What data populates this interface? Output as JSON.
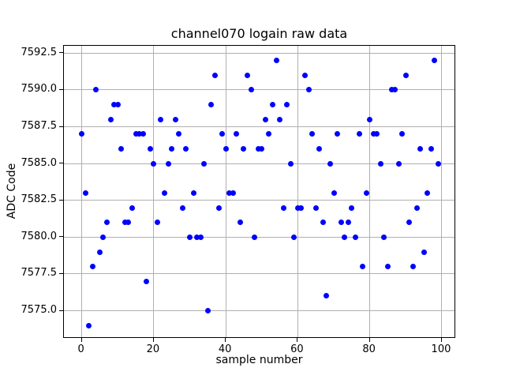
{
  "chart_data": {
    "type": "scatter",
    "title": "channel070 logain raw data",
    "xlabel": "sample number",
    "ylabel": "ADC Code",
    "marker_color": "#0000ff",
    "grid": true,
    "grid_color": "#b0b0b0",
    "legend": "none",
    "xlim": [
      -4.95,
      103.95
    ],
    "ylim": [
      7573.1,
      7593.0
    ],
    "xticks": [
      0,
      20,
      40,
      60,
      80,
      100
    ],
    "xtick_labels": [
      "0",
      "20",
      "40",
      "60",
      "80",
      "100"
    ],
    "yticks": [
      7575.0,
      7577.5,
      7580.0,
      7582.5,
      7585.0,
      7587.5,
      7590.0,
      7592.5
    ],
    "ytick_labels": [
      "7575.0",
      "7577.5",
      "7580.0",
      "7582.5",
      "7585.0",
      "7587.5",
      "7590.0",
      "7592.5"
    ],
    "x": [
      0,
      1,
      2,
      3,
      4,
      5,
      6,
      7,
      8,
      9,
      10,
      11,
      12,
      13,
      14,
      15,
      16,
      17,
      18,
      19,
      20,
      21,
      22,
      23,
      24,
      25,
      26,
      27,
      28,
      29,
      30,
      31,
      32,
      33,
      34,
      35,
      36,
      37,
      38,
      39,
      40,
      41,
      42,
      43,
      44,
      45,
      46,
      47,
      48,
      49,
      50,
      51,
      52,
      53,
      54,
      55,
      56,
      57,
      58,
      59,
      60,
      61,
      62,
      63,
      64,
      65,
      66,
      67,
      68,
      69,
      70,
      71,
      72,
      73,
      74,
      75,
      76,
      77,
      78,
      79,
      80,
      81,
      82,
      83,
      84,
      85,
      86,
      87,
      88,
      89,
      90,
      91,
      92,
      93,
      94,
      95,
      96,
      97,
      98,
      99
    ],
    "y": [
      7587,
      7583,
      7574,
      7578,
      7590,
      7579,
      7580,
      7581,
      7588,
      7589,
      7589,
      7586,
      7581,
      7581,
      7582,
      7587,
      7587,
      7587,
      7577,
      7586,
      7585,
      7581,
      7588,
      7583,
      7585,
      7586,
      7588,
      7587,
      7582,
      7586,
      7580,
      7583,
      7580,
      7580,
      7585,
      7575,
      7589,
      7591,
      7582,
      7587,
      7586,
      7583,
      7583,
      7587,
      7581,
      7586,
      7591,
      7590,
      7580,
      7586,
      7586,
      7588,
      7587,
      7589,
      7592,
      7588,
      7582,
      7589,
      7585,
      7580,
      7582,
      7582,
      7591,
      7590,
      7587,
      7582,
      7586,
      7581,
      7576,
      7585,
      7583,
      7587,
      7581,
      7580,
      7581,
      7582,
      7580,
      7587,
      7578,
      7583,
      7588,
      7587,
      7587,
      7585,
      7580,
      7578,
      7590,
      7590,
      7585,
      7587,
      7591,
      7581,
      7578,
      7582,
      7586,
      7579,
      7583,
      7586,
      7592,
      7585
    ]
  }
}
